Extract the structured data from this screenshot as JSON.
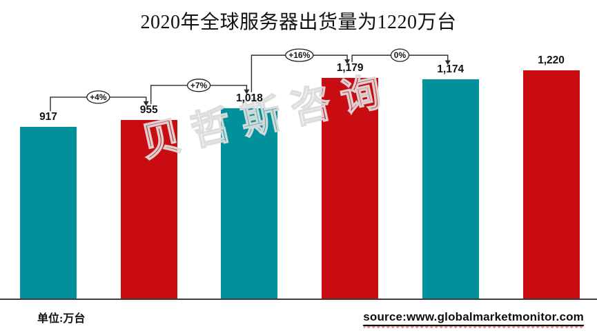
{
  "title": "2020年全球服务器出货量为1220万台",
  "watermark_text": "贝哲斯咨询",
  "footer": {
    "unit_label": "单位:万台",
    "source_label": "source:www.globalmarketmonitor.com"
  },
  "colors": {
    "teal": "#02909A",
    "red": "#C90C12",
    "axis_line": "#3D3D3D",
    "arrow": "#2B2B2B",
    "bubble_fill": "#FFFFFF",
    "bubble_stroke": "#1F1F1F",
    "label_text": "#111111",
    "source_squiggle": "#E4807E"
  },
  "chart_data": {
    "type": "bar",
    "title": "2020年全球服务器出货量为1220万台",
    "unit": "万台",
    "values": [
      917,
      955,
      1018,
      1179,
      1174,
      1220
    ],
    "value_labels": [
      "917",
      "955",
      "1,018",
      "1,179",
      "1,174",
      "1,220"
    ],
    "bar_colors": [
      "teal",
      "red",
      "teal",
      "red",
      "teal",
      "red"
    ],
    "growth_annotations": [
      {
        "label": "+4%",
        "from": 0,
        "to": 1
      },
      {
        "label": "+7%",
        "from": 1,
        "to": 2
      },
      {
        "label": "+16%",
        "from": 2,
        "to": 3
      },
      {
        "label": "0%",
        "from": 3,
        "to": 4
      }
    ],
    "ylim": [
      0,
      1220
    ],
    "x_tick_labels_visible": false,
    "y_axis_visible": false,
    "gridlines": false,
    "legend": "none"
  }
}
